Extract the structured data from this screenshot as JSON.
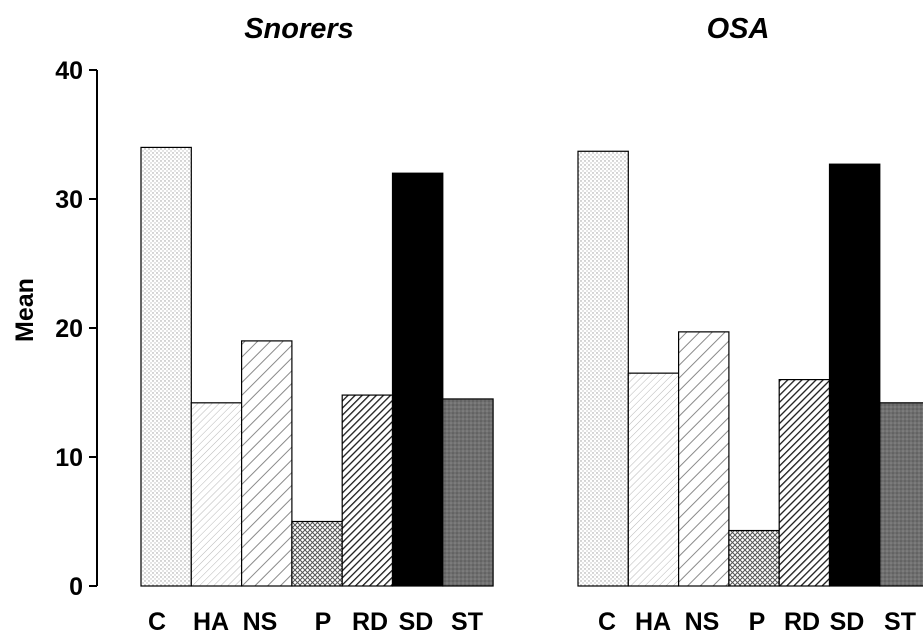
{
  "chart_data": [
    {
      "type": "bar",
      "title": "Snorers",
      "ylabel": "Mean",
      "categories": [
        "C",
        "HA",
        "NS",
        "P",
        "RD",
        "SD",
        "ST"
      ],
      "values": [
        34,
        14.2,
        19,
        5,
        14.8,
        32,
        14.5
      ],
      "ylim": [
        0,
        40
      ],
      "yticks": [
        "0",
        "10",
        "20",
        "30",
        "40"
      ],
      "grid": false
    },
    {
      "type": "bar",
      "title": "OSA",
      "ylabel": "",
      "categories": [
        "C",
        "HA",
        "NS",
        "P",
        "RD",
        "SD",
        "ST"
      ],
      "values": [
        33.7,
        16.5,
        19.7,
        4.3,
        16,
        32.7,
        14.2
      ],
      "ylim": [
        0,
        40
      ],
      "grid": false
    }
  ],
  "patterns": {
    "C": "dotted-light",
    "HA": "fine-diagonal-light",
    "NS": "diagonal-stripes",
    "P": "crosshatch",
    "RD": "dense-diagonal",
    "SD": "solid-black",
    "ST": "dark-gray-stipple"
  }
}
